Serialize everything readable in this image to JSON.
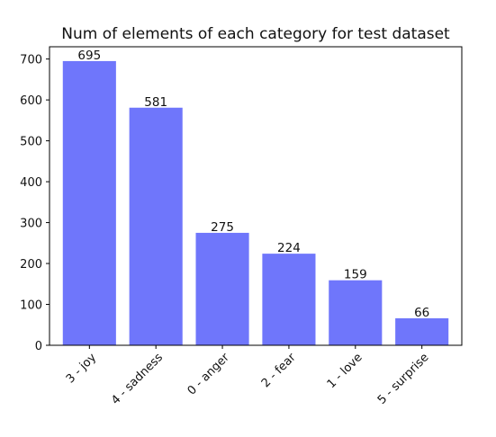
{
  "chart_data": {
    "type": "bar",
    "title": "Num of elements of each category for test dataset",
    "xlabel": "",
    "ylabel": "",
    "categories": [
      "3 - joy",
      "4 - sadness",
      "0 - anger",
      "2 - fear",
      "1 - love",
      "5 - surprise"
    ],
    "values": [
      695,
      581,
      275,
      224,
      159,
      66
    ],
    "data_labels": [
      "695",
      "581",
      "275",
      "224",
      "159",
      "66"
    ],
    "ylim": [
      0,
      730
    ],
    "yticks": [
      0,
      100,
      200,
      300,
      400,
      500,
      600,
      700
    ],
    "grid": false,
    "legend": "none",
    "bar_color": "#6f76fb"
  }
}
